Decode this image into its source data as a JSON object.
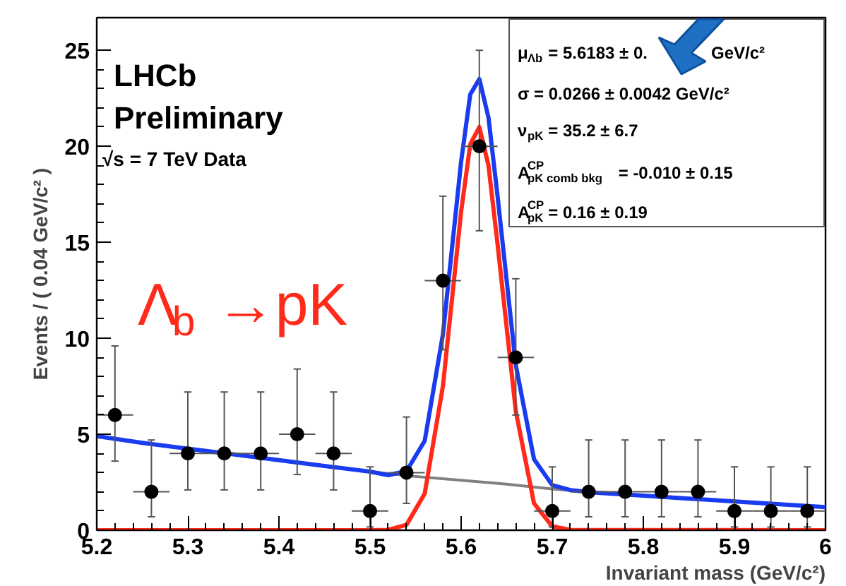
{
  "chart_data": {
    "type": "scatter",
    "xlabel": "Invariant mass (GeV/c²)",
    "ylabel": "Events / ( 0.04 GeV/c² )",
    "xlim": [
      5.2,
      6.0
    ],
    "ylim": [
      0,
      26.7
    ],
    "xticks": [
      5.2,
      5.3,
      5.4,
      5.5,
      5.6,
      5.7,
      5.8,
      5.9,
      {
        "value": 6.0,
        "label": "6"
      }
    ],
    "yticks": [
      0,
      5,
      10,
      15,
      20,
      25
    ],
    "grid": false,
    "annotations": [
      "LHCb",
      "Preliminary",
      "√s = 7 TeV Data",
      "Λ$_{b}$→pK",
      "μ$_{Λb}$ = 5.6183 ± 0.",
      "GeV/c²",
      "σ = 0.0266 ± 0.0042 GeV/c²",
      "ν$_{pK}$ = 35.2 ± 6.7",
      "A$^{CP}$$_{pK comb bkg}$ = -0.010 ± 0.15",
      "A$^{CP}$$_{pK}$ = 0.16 ± 0.19"
    ],
    "series": [
      {
        "type": "line",
        "color": "#808080",
        "x": [
          5.5,
          5.55,
          5.6,
          5.65,
          5.7,
          5.75,
          5.8,
          5.85,
          5.9,
          5.95,
          6.0
        ],
        "values": [
          3.05,
          2.8,
          2.6,
          2.4,
          2.15,
          1.95,
          1.8,
          1.65,
          1.5,
          1.35,
          1.2
        ]
      },
      {
        "type": "line",
        "color": "#ff2a1a",
        "x": [
          5.2,
          5.5,
          5.52,
          5.54,
          5.56,
          5.58,
          5.6,
          5.61,
          5.62,
          5.63,
          5.64,
          5.66,
          5.68,
          5.7,
          5.72,
          6.0
        ],
        "values": [
          0,
          0,
          0.02,
          0.28,
          1.9,
          7.5,
          16.6,
          20.1,
          21,
          19,
          14.9,
          6.2,
          1.4,
          0.2,
          0.02,
          0
        ]
      },
      {
        "type": "line",
        "color": "#1a3cf0",
        "x": [
          5.2,
          5.25,
          5.3,
          5.35,
          5.4,
          5.45,
          5.5,
          5.52,
          5.54,
          5.56,
          5.58,
          5.6,
          5.61,
          5.62,
          5.63,
          5.64,
          5.66,
          5.68,
          5.7,
          5.72,
          5.75,
          5.8,
          5.85,
          5.9,
          5.95,
          6.0
        ],
        "values": [
          4.9,
          4.55,
          4.25,
          3.95,
          3.65,
          3.35,
          3.05,
          2.87,
          3.08,
          4.65,
          10.2,
          19.2,
          22.7,
          23.5,
          21.5,
          17.4,
          8.6,
          3.7,
          2.35,
          2.09,
          1.95,
          1.8,
          1.65,
          1.5,
          1.35,
          1.2
        ]
      },
      {
        "type": "scatter",
        "color": "#000000",
        "marker": "circle",
        "x": [
          5.22,
          5.26,
          5.3,
          5.34,
          5.38,
          5.42,
          5.46,
          5.5,
          5.54,
          5.58,
          5.62,
          5.66,
          5.7,
          5.74,
          5.78,
          5.82,
          5.86,
          5.9,
          5.94,
          5.98
        ],
        "values": [
          6,
          2,
          4,
          4,
          4,
          5,
          4,
          1,
          3,
          13,
          20,
          9,
          1,
          2,
          2,
          2,
          2,
          1,
          1,
          1
        ],
        "errors": [
          [
            3.6,
            9.6
          ],
          [
            0.7,
            4.7
          ],
          [
            2.1,
            7.2
          ],
          [
            2.1,
            7.2
          ],
          [
            2.1,
            7.2
          ],
          [
            2.9,
            8.4
          ],
          [
            2.1,
            7.2
          ],
          [
            0.17,
            3.3
          ],
          [
            1.4,
            5.9
          ],
          [
            9.4,
            17.4
          ],
          [
            15.6,
            25.0
          ],
          [
            6.0,
            13.1
          ],
          [
            0.17,
            3.3
          ],
          [
            0.7,
            4.7
          ],
          [
            0.7,
            4.7
          ],
          [
            0.7,
            4.7
          ],
          [
            0.7,
            4.7
          ],
          [
            0.17,
            3.3
          ],
          [
            0.17,
            3.3
          ],
          [
            0.17,
            3.3
          ]
        ],
        "xerrors": [
          0.02,
          0.02,
          0.02,
          0.02,
          0.02,
          0.02,
          0.02,
          0.02,
          0.02,
          0.02,
          0.02,
          0.02,
          0.02,
          0.02,
          0.02,
          0.02,
          0.02,
          0.02,
          0.02,
          0.02
        ]
      }
    ]
  }
}
